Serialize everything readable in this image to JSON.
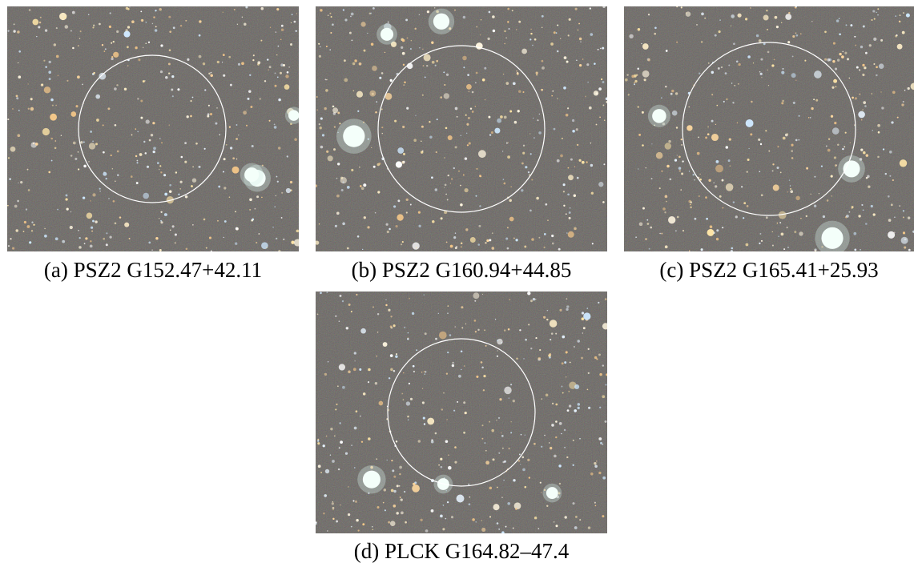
{
  "figure": {
    "panels": [
      {
        "caption": "(a) PSZ2 G152.47+42.11"
      },
      {
        "caption": "(b) PSZ2 G160.94+44.85"
      },
      {
        "caption": "(c) PSZ2 G165.41+25.93"
      },
      {
        "caption": "(d) PLCK G164.82–47.4"
      }
    ]
  }
}
